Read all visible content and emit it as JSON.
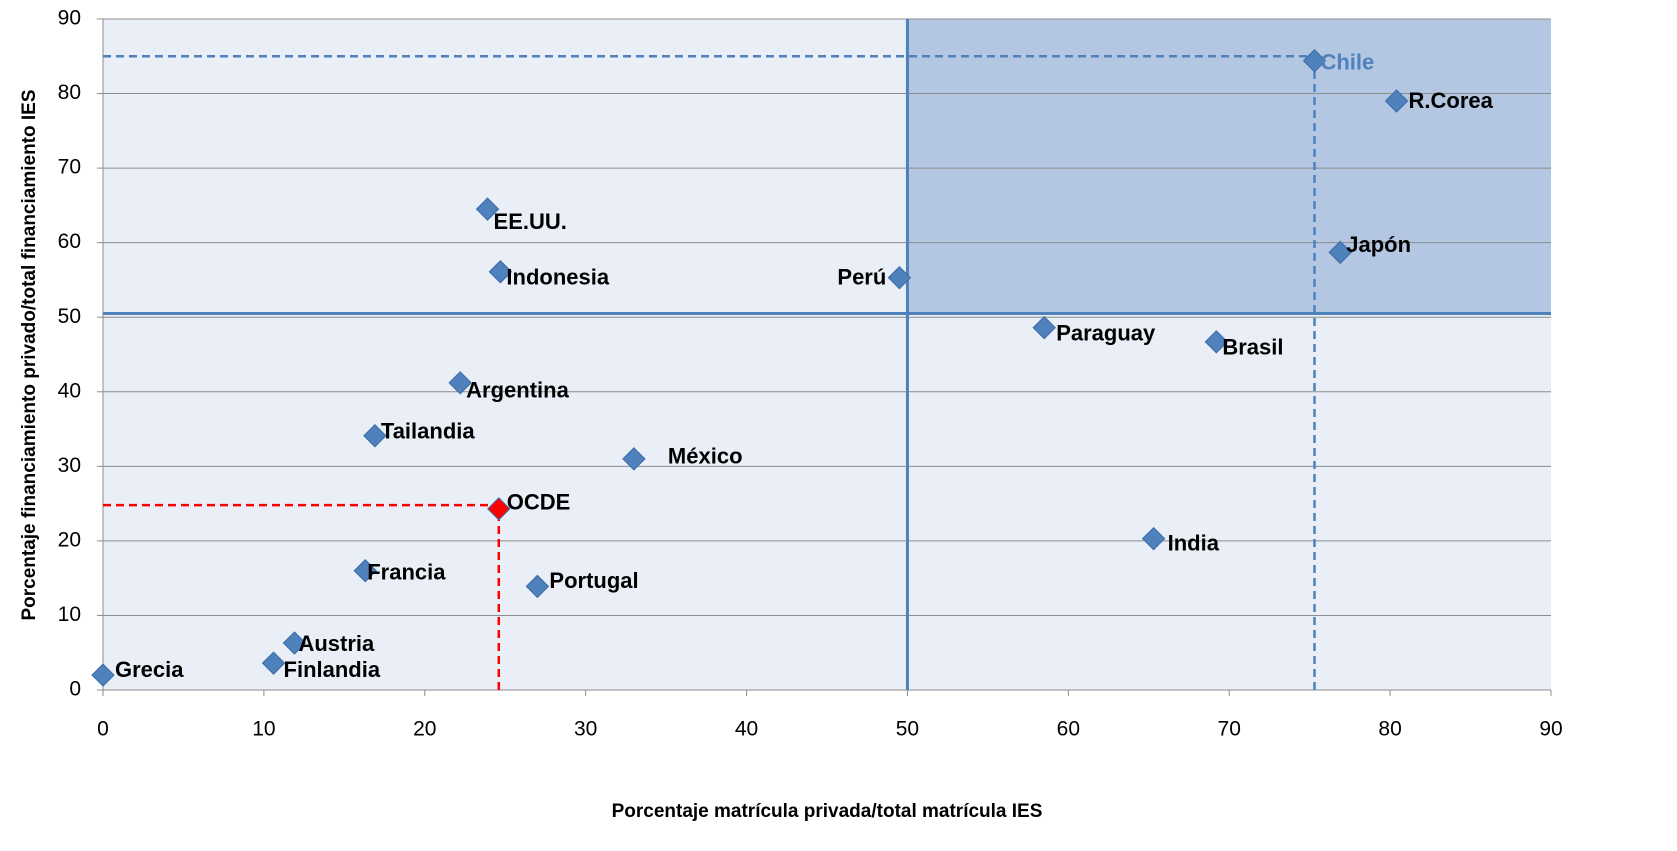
{
  "chart_data": {
    "type": "scatter",
    "x_label": "Porcentaje matrícula privada/total matrícula IES",
    "y_label": "Porcentaje financiamiento privado/total financiamiento IES",
    "xlim": [
      0,
      90
    ],
    "xticks": [
      0,
      10,
      20,
      30,
      40,
      50,
      60,
      70,
      80,
      90
    ],
    "ylim": [
      0,
      90
    ],
    "yticks": [
      0,
      10,
      20,
      30,
      40,
      50,
      60,
      70,
      80,
      90
    ],
    "grid": true,
    "color": "#4f81bd",
    "labels": [
      "Chile",
      "R.Corea",
      "Japón",
      "Perú",
      "Paraguay",
      "Brasil",
      "India",
      "EE.UU.",
      "Indonesia",
      "Argentina",
      "Tailandia",
      "México",
      "OCDE",
      "Francia",
      "Portugal",
      "Austria",
      "Finlandia",
      "Grecia"
    ],
    "x": [
      75.3,
      80.4,
      76.9,
      49.5,
      58.5,
      69.2,
      65.3,
      23.9,
      24.7,
      22.2,
      16.9,
      33.0,
      24.6,
      16.3,
      27.0,
      11.9,
      10.6,
      0
    ],
    "values": [
      84.4,
      79.0,
      58.7,
      55.3,
      48.6,
      46.7,
      20.3,
      64.5,
      56.1,
      41.2,
      34.1,
      31.0,
      24.3,
      16.0,
      13.9,
      6.3,
      3.6,
      2.0
    ],
    "point_colors": [
      "#4f81bd",
      "#4f81bd",
      "#4f81bd",
      "#4f81bd",
      "#4f81bd",
      "#4f81bd",
      "#4f81bd",
      "#4f81bd",
      "#4f81bd",
      "#4f81bd",
      "#4f81bd",
      "#4f81bd",
      "#ff0000",
      "#4f81bd",
      "#4f81bd",
      "#4f81bd",
      "#4f81bd",
      "#4f81bd"
    ],
    "label_colors": [
      "#4f81bd",
      "#000000",
      "#000000",
      "#000000",
      "#000000",
      "#000000",
      "#000000",
      "#000000",
      "#000000",
      "#000000",
      "#000000",
      "#000000",
      "#000000",
      "#000000",
      "#000000",
      "#000000",
      "#000000",
      "#000000"
    ],
    "highlight_region": {
      "x": [
        50,
        90
      ],
      "y": [
        50.5,
        90
      ],
      "color": "#b3c7e3"
    },
    "reference_lines": [
      {
        "x": [
          50,
          50
        ],
        "y": [
          0,
          90
        ],
        "color": "#4f81bd",
        "dashed": false
      },
      {
        "x": [
          0,
          90
        ],
        "y": [
          50.5,
          50.5
        ],
        "color": "#4f81bd",
        "dashed": false
      },
      {
        "x": [
          0,
          75.3
        ],
        "y": [
          85,
          85
        ],
        "color": "#4f81bd",
        "dashed": true
      },
      {
        "x": [
          75.3,
          75.3
        ],
        "y": [
          0,
          85
        ],
        "color": "#4f81bd",
        "dashed": true
      },
      {
        "x": [
          0,
          24.6
        ],
        "y": [
          24.8,
          24.8
        ],
        "color": "#ff0000",
        "dashed": true
      },
      {
        "x": [
          24.6,
          24.6
        ],
        "y": [
          0,
          24.8
        ],
        "color": "#ff0000",
        "dashed": true
      }
    ]
  }
}
